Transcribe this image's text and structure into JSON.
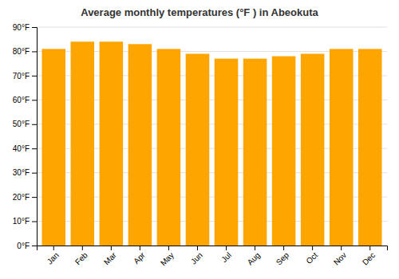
{
  "chart_data": {
    "type": "bar",
    "title": "Average monthly temperatures (°F ) in Abeokuta",
    "categories": [
      "Jan",
      "Feb",
      "Mar",
      "Apr",
      "May",
      "Jun",
      "Jul",
      "Aug",
      "Sep",
      "Oct",
      "Nov",
      "Dec"
    ],
    "values": [
      81,
      84,
      84,
      83,
      81,
      79,
      77,
      77,
      78,
      79,
      81,
      81
    ],
    "color": "#FFA500",
    "ylim": [
      0,
      90
    ],
    "yticks": [
      {
        "value": 0,
        "label": "0°F"
      },
      {
        "value": 10,
        "label": "10°F"
      },
      {
        "value": 20,
        "label": "20°F"
      },
      {
        "value": 30,
        "label": "30°F"
      },
      {
        "value": 40,
        "label": "40°F"
      },
      {
        "value": 50,
        "label": "50°F"
      },
      {
        "value": 60,
        "label": "60°F"
      },
      {
        "value": 70,
        "label": "70°F"
      },
      {
        "value": 80,
        "label": "80°F"
      },
      {
        "value": 90,
        "label": "90°F"
      }
    ],
    "grid": true
  }
}
